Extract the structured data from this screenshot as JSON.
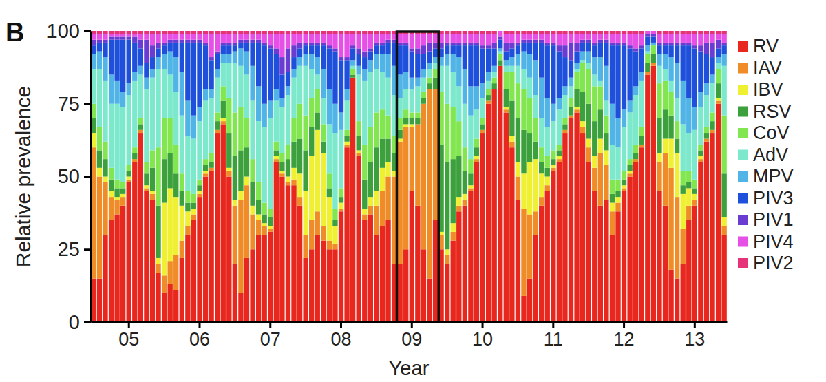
{
  "chart_data": {
    "type": "bar",
    "title": "B",
    "x_label": "Year",
    "y_label": "Relative prevalence",
    "stacked": true,
    "grid": false,
    "legend": "right",
    "ylim": [
      0,
      100
    ],
    "yticks": [
      0,
      25,
      50,
      75,
      100
    ],
    "highlight": {
      "from": 52,
      "to": 58
    },
    "categories": [
      null,
      null,
      null,
      null,
      null,
      null,
      "05",
      null,
      null,
      null,
      null,
      null,
      null,
      null,
      null,
      null,
      null,
      null,
      "06",
      null,
      null,
      null,
      null,
      null,
      null,
      null,
      null,
      null,
      null,
      null,
      "07",
      null,
      null,
      null,
      null,
      null,
      null,
      null,
      null,
      null,
      null,
      null,
      "08",
      null,
      null,
      null,
      null,
      null,
      null,
      null,
      null,
      null,
      null,
      null,
      "09",
      null,
      null,
      null,
      null,
      null,
      null,
      null,
      null,
      null,
      null,
      null,
      "10",
      null,
      null,
      null,
      null,
      null,
      null,
      null,
      null,
      null,
      null,
      null,
      "11",
      null,
      null,
      null,
      null,
      null,
      null,
      null,
      null,
      null,
      null,
      null,
      "12",
      null,
      null,
      null,
      null,
      null,
      null,
      null,
      null,
      null,
      null,
      null,
      "13",
      null,
      null,
      null,
      null,
      null
    ],
    "series": [
      {
        "name": "RV",
        "color": "#e8281e",
        "values": [
          15,
          15,
          30,
          35,
          37,
          40,
          48,
          55,
          65,
          45,
          42,
          17,
          10,
          13,
          11,
          22,
          30,
          35,
          43,
          50,
          52,
          65,
          68,
          50,
          20,
          10,
          22,
          25,
          30,
          30,
          31,
          55,
          50,
          47,
          47,
          40,
          22,
          25,
          30,
          28,
          25,
          25,
          38,
          60,
          84,
          57,
          35,
          37,
          30,
          33,
          35,
          20,
          20,
          25,
          45,
          40,
          25,
          15,
          35,
          25,
          20,
          28,
          38,
          40,
          45,
          55,
          65,
          75,
          80,
          88,
          72,
          60,
          42,
          9,
          15,
          30,
          40,
          45,
          52,
          55,
          65,
          70,
          72,
          65,
          55,
          45,
          40,
          42,
          30,
          38,
          45,
          50,
          55,
          60,
          85,
          88,
          45,
          40,
          18,
          15,
          20,
          35,
          40,
          55,
          62,
          65,
          75,
          30
        ]
      },
      {
        "name": "IAV",
        "color": "#f08c28",
        "values": [
          45,
          35,
          18,
          8,
          5,
          3,
          1,
          1,
          1,
          1,
          2,
          3,
          6,
          8,
          12,
          6,
          3,
          2,
          1,
          1,
          1,
          1,
          1,
          2,
          20,
          32,
          25,
          12,
          5,
          3,
          1,
          1,
          1,
          1,
          2,
          3,
          8,
          10,
          8,
          5,
          3,
          2,
          1,
          1,
          0,
          1,
          2,
          3,
          10,
          12,
          15,
          30,
          42,
          42,
          22,
          28,
          50,
          65,
          45,
          5,
          3,
          3,
          2,
          2,
          1,
          1,
          1,
          1,
          0,
          0,
          1,
          2,
          8,
          30,
          22,
          8,
          3,
          2,
          1,
          1,
          1,
          1,
          1,
          2,
          5,
          8,
          18,
          12,
          8,
          3,
          1,
          1,
          1,
          1,
          1,
          1,
          10,
          18,
          35,
          28,
          12,
          5,
          2,
          1,
          1,
          1,
          1,
          3
        ]
      },
      {
        "name": "IBV",
        "color": "#f0f032",
        "values": [
          5,
          3,
          2,
          2,
          1,
          1,
          1,
          0,
          0,
          1,
          1,
          2,
          25,
          25,
          20,
          12,
          5,
          2,
          1,
          1,
          0,
          0,
          1,
          1,
          2,
          3,
          3,
          3,
          2,
          1,
          1,
          1,
          1,
          2,
          4,
          8,
          15,
          22,
          28,
          25,
          15,
          6,
          2,
          1,
          0,
          1,
          2,
          3,
          5,
          8,
          5,
          2,
          1,
          1,
          1,
          0,
          0,
          0,
          0,
          1,
          2,
          3,
          3,
          2,
          1,
          1,
          0,
          0,
          0,
          0,
          1,
          2,
          5,
          12,
          18,
          18,
          8,
          3,
          1,
          1,
          0,
          0,
          1,
          2,
          3,
          4,
          5,
          5,
          3,
          2,
          1,
          1,
          0,
          0,
          0,
          0,
          3,
          5,
          10,
          15,
          12,
          6,
          2,
          1,
          0,
          0,
          1,
          3
        ]
      },
      {
        "name": "RSV",
        "color": "#3ca03c",
        "values": [
          5,
          6,
          6,
          4,
          3,
          2,
          2,
          2,
          2,
          4,
          8,
          18,
          15,
          12,
          8,
          5,
          3,
          2,
          2,
          2,
          2,
          3,
          6,
          12,
          15,
          14,
          10,
          8,
          5,
          3,
          3,
          2,
          3,
          6,
          9,
          12,
          14,
          10,
          6,
          4,
          3,
          2,
          2,
          2,
          1,
          5,
          10,
          12,
          15,
          10,
          8,
          6,
          3,
          2,
          2,
          2,
          2,
          2,
          4,
          30,
          30,
          22,
          14,
          8,
          4,
          3,
          2,
          2,
          2,
          2,
          6,
          12,
          15,
          15,
          10,
          6,
          4,
          3,
          2,
          2,
          2,
          3,
          6,
          10,
          12,
          12,
          10,
          6,
          3,
          2,
          2,
          2,
          2,
          3,
          3,
          3,
          12,
          10,
          8,
          5,
          3,
          2,
          2,
          2,
          2,
          3,
          5,
          15
        ]
      },
      {
        "name": "CoV",
        "color": "#82e650",
        "values": [
          5,
          8,
          6,
          4,
          3,
          2,
          2,
          2,
          2,
          4,
          6,
          20,
          14,
          12,
          10,
          6,
          4,
          3,
          2,
          2,
          3,
          3,
          5,
          12,
          15,
          15,
          10,
          8,
          6,
          4,
          3,
          3,
          3,
          5,
          8,
          12,
          12,
          10,
          8,
          6,
          5,
          4,
          3,
          2,
          2,
          5,
          12,
          12,
          12,
          10,
          8,
          6,
          4,
          3,
          2,
          2,
          2,
          2,
          3,
          18,
          20,
          18,
          12,
          8,
          5,
          3,
          2,
          2,
          2,
          2,
          6,
          10,
          12,
          14,
          12,
          8,
          5,
          4,
          3,
          2,
          2,
          3,
          6,
          10,
          12,
          12,
          8,
          6,
          5,
          4,
          3,
          2,
          3,
          3,
          3,
          3,
          12,
          10,
          8,
          6,
          5,
          4,
          3,
          2,
          2,
          3,
          5,
          20
        ]
      },
      {
        "name": "AdV",
        "color": "#7ce8cc",
        "values": [
          12,
          20,
          21,
          22,
          26,
          26,
          24,
          23,
          15,
          25,
          25,
          27,
          17,
          15,
          18,
          20,
          19,
          19,
          20,
          20,
          19,
          12,
          8,
          12,
          17,
          14,
          15,
          20,
          21,
          26,
          31,
          14,
          16,
          17,
          14,
          13,
          17,
          10,
          5,
          9,
          17,
          26,
          20,
          10,
          1,
          16,
          22,
          19,
          15,
          13,
          13,
          14,
          7,
          7,
          8,
          9,
          5,
          3,
          2,
          9,
          13,
          12,
          12,
          15,
          15,
          10,
          7,
          3,
          2,
          1,
          2,
          2,
          6,
          7,
          7,
          8,
          10,
          10,
          10,
          12,
          8,
          4,
          1,
          1,
          2,
          4,
          2,
          5,
          12,
          11,
          15,
          16,
          17,
          16,
          1,
          0,
          6,
          4,
          4,
          8,
          16,
          13,
          17,
          13,
          11,
          10,
          2,
          17
        ]
      },
      {
        "name": "MPV",
        "color": "#50b4e6",
        "values": [
          5,
          6,
          8,
          10,
          8,
          5,
          4,
          3,
          3,
          4,
          3,
          4,
          5,
          8,
          12,
          15,
          12,
          8,
          5,
          4,
          3,
          3,
          3,
          3,
          4,
          6,
          8,
          12,
          12,
          8,
          6,
          4,
          3,
          3,
          3,
          3,
          4,
          5,
          6,
          10,
          12,
          10,
          6,
          4,
          2,
          3,
          4,
          4,
          5,
          6,
          8,
          10,
          8,
          6,
          4,
          3,
          3,
          2,
          2,
          3,
          4,
          6,
          10,
          12,
          10,
          8,
          5,
          3,
          2,
          1,
          2,
          3,
          4,
          6,
          8,
          12,
          14,
          10,
          6,
          4,
          3,
          3,
          2,
          3,
          4,
          6,
          8,
          12,
          14,
          10,
          6,
          4,
          3,
          3,
          2,
          1,
          4,
          5,
          8,
          12,
          15,
          12,
          8,
          5,
          4,
          3,
          2,
          4
        ]
      },
      {
        "name": "PIV3",
        "color": "#1e50dc",
        "values": [
          3,
          3,
          5,
          12,
          14,
          18,
          15,
          10,
          6,
          5,
          4,
          3,
          3,
          3,
          5,
          10,
          20,
          25,
          22,
          15,
          10,
          5,
          3,
          3,
          2,
          2,
          3,
          8,
          15,
          20,
          18,
          12,
          8,
          5,
          4,
          3,
          3,
          3,
          4,
          8,
          14,
          18,
          18,
          10,
          4,
          4,
          4,
          3,
          3,
          3,
          4,
          8,
          10,
          9,
          9,
          8,
          5,
          4,
          3,
          3,
          3,
          3,
          4,
          8,
          14,
          14,
          12,
          8,
          6,
          3,
          3,
          3,
          3,
          3,
          4,
          6,
          12,
          18,
          20,
          16,
          10,
          6,
          4,
          3,
          3,
          4,
          5,
          8,
          20,
          25,
          22,
          18,
          12,
          8,
          3,
          2,
          3,
          3,
          4,
          6,
          12,
          18,
          20,
          14,
          10,
          6,
          3,
          3
        ]
      },
      {
        "name": "PIV1",
        "color": "#6a3cd2",
        "values": [
          2,
          1,
          1,
          1,
          1,
          1,
          1,
          2,
          3,
          8,
          4,
          2,
          1,
          1,
          1,
          1,
          1,
          1,
          1,
          1,
          1,
          1,
          1,
          1,
          1,
          1,
          1,
          1,
          1,
          1,
          1,
          2,
          6,
          8,
          4,
          2,
          1,
          1,
          1,
          1,
          1,
          1,
          1,
          1,
          1,
          2,
          2,
          1,
          1,
          1,
          1,
          1,
          1,
          1,
          1,
          2,
          3,
          3,
          2,
          2,
          1,
          1,
          1,
          1,
          1,
          1,
          1,
          1,
          2,
          1,
          3,
          2,
          1,
          1,
          1,
          1,
          1,
          1,
          1,
          2,
          4,
          6,
          3,
          1,
          1,
          1,
          1,
          1,
          1,
          1,
          1,
          1,
          1,
          1,
          1,
          1,
          1,
          1,
          1,
          1,
          1,
          1,
          1,
          2,
          4,
          5,
          3,
          1
        ]
      },
      {
        "name": "PIV4",
        "color": "#e650e6",
        "values": [
          2,
          2,
          2,
          1,
          1,
          1,
          1,
          1,
          2,
          2,
          4,
          3,
          3,
          2,
          2,
          2,
          2,
          2,
          2,
          3,
          8,
          6,
          3,
          3,
          3,
          2,
          2,
          2,
          2,
          3,
          4,
          5,
          8,
          5,
          4,
          3,
          3,
          3,
          3,
          3,
          4,
          5,
          8,
          8,
          4,
          5,
          6,
          5,
          3,
          3,
          2,
          2,
          3,
          3,
          5,
          5,
          4,
          3,
          3,
          3,
          3,
          3,
          3,
          3,
          3,
          3,
          4,
          4,
          3,
          2,
          3,
          3,
          3,
          2,
          2,
          2,
          2,
          3,
          3,
          4,
          4,
          3,
          3,
          2,
          2,
          3,
          2,
          2,
          3,
          3,
          3,
          4,
          5,
          4,
          1,
          1,
          3,
          3,
          3,
          3,
          3,
          3,
          4,
          4,
          3,
          3,
          2,
          3
        ]
      },
      {
        "name": "PIV2",
        "color": "#e63278",
        "values": [
          1,
          1,
          1,
          1,
          1,
          1,
          1,
          1,
          1,
          1,
          1,
          1,
          1,
          1,
          1,
          1,
          1,
          1,
          1,
          1,
          1,
          1,
          1,
          1,
          1,
          1,
          1,
          1,
          1,
          1,
          1,
          1,
          1,
          1,
          1,
          1,
          1,
          1,
          1,
          1,
          1,
          1,
          1,
          1,
          1,
          1,
          1,
          1,
          1,
          1,
          1,
          1,
          1,
          1,
          1,
          1,
          1,
          1,
          1,
          1,
          1,
          1,
          1,
          1,
          1,
          1,
          1,
          1,
          1,
          0,
          1,
          1,
          1,
          1,
          1,
          1,
          1,
          1,
          1,
          1,
          1,
          1,
          1,
          1,
          1,
          1,
          1,
          1,
          1,
          1,
          1,
          1,
          1,
          1,
          0,
          0,
          1,
          1,
          1,
          1,
          1,
          1,
          1,
          1,
          1,
          1,
          1,
          1
        ]
      }
    ]
  }
}
